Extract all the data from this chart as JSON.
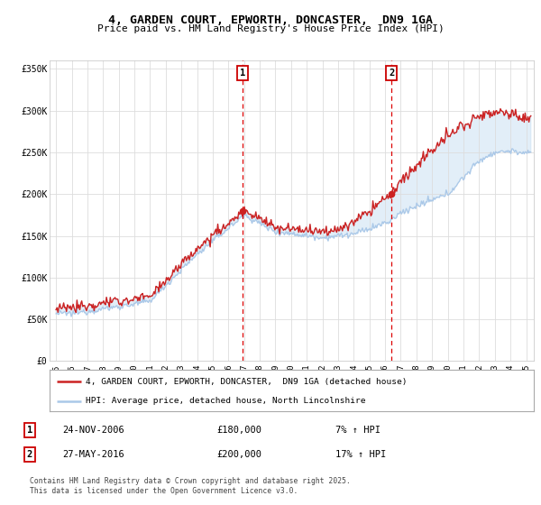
{
  "title": "4, GARDEN COURT, EPWORTH, DONCASTER,  DN9 1GA",
  "subtitle": "Price paid vs. HM Land Registry's House Price Index (HPI)",
  "red_line_label": "4, GARDEN COURT, EPWORTH, DONCASTER,  DN9 1GA (detached house)",
  "blue_line_label": "HPI: Average price, detached house, North Lincolnshire",
  "sale1_label": "1",
  "sale1_date": "24-NOV-2006",
  "sale1_price": "£180,000",
  "sale1_hpi": "7% ↑ HPI",
  "sale1_year": 2006.9,
  "sale2_label": "2",
  "sale2_date": "27-MAY-2016",
  "sale2_price": "£200,000",
  "sale2_hpi": "17% ↑ HPI",
  "sale2_year": 2016.42,
  "copyright": "Contains HM Land Registry data © Crown copyright and database right 2025.\nThis data is licensed under the Open Government Licence v3.0.",
  "ylim": [
    0,
    360000
  ],
  "xlim": [
    1994.6,
    2025.5
  ],
  "yticks": [
    0,
    50000,
    100000,
    150000,
    200000,
    250000,
    300000,
    350000
  ],
  "ytick_labels": [
    "£0",
    "£50K",
    "£100K",
    "£150K",
    "£200K",
    "£250K",
    "£300K",
    "£350K"
  ],
  "xticks": [
    1995,
    1996,
    1997,
    1998,
    1999,
    2000,
    2001,
    2002,
    2003,
    2004,
    2005,
    2006,
    2007,
    2008,
    2009,
    2010,
    2011,
    2012,
    2013,
    2014,
    2015,
    2016,
    2017,
    2018,
    2019,
    2020,
    2021,
    2022,
    2023,
    2024,
    2025
  ],
  "sale1_marker_price": 180000,
  "sale2_marker_price": 200000,
  "fig_bg": "#ffffff",
  "plot_bg": "#ffffff",
  "grid_color": "#dddddd",
  "red_color": "#cc2222",
  "blue_color": "#aac8e8",
  "fill_color": "#d0e4f4"
}
